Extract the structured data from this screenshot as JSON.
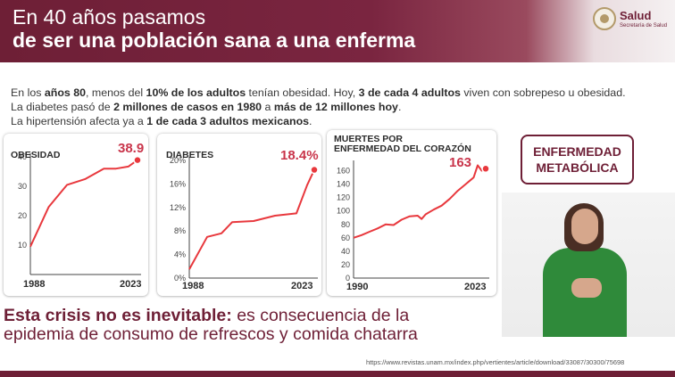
{
  "header": {
    "title_line1": "En 40 años pasamos",
    "title_line2": "de ser una población sana a una enferma",
    "logo_name": "Salud",
    "logo_subtitle": "Secretaría de Salud"
  },
  "intro": {
    "line1": {
      "p1": "En los ",
      "b1": "años 80",
      "p2": ", menos del ",
      "b2": "10% de los adultos",
      "p3": " tenían obesidad. Hoy, ",
      "b3": "3 de cada 4 adultos",
      "p4": " viven con sobrepeso u obesidad."
    },
    "line2": {
      "p1": "La diabetes pasó de ",
      "b1": "2 millones de casos en 1980",
      "p2": " a ",
      "b2": "más de 12 millones hoy",
      "p3": "."
    },
    "line3": {
      "p1": "La hipertensión afecta ya a ",
      "b1": "1 de cada 3 adultos mexicanos",
      "p2": "."
    }
  },
  "badge": {
    "line1": "ENFERMEDAD",
    "line2": "METABÓLICA"
  },
  "statement": {
    "bold": "Esta crisis no es inevitable:",
    "rest1": " es consecuencia de la",
    "line2": "epidemia de consumo de refrescos y comida chatarra"
  },
  "source": "https://www.revistas.unam.mx/index.php/vertientes/article/download/33087/30300/75698",
  "colors": {
    "accent": "#6e1f36",
    "line": "#e8383d",
    "value": "#c9354b"
  },
  "chart_data": [
    {
      "type": "line",
      "title": "OBESIDAD",
      "highlight": "38.9",
      "x_start_label": "1988",
      "x_end_label": "2023",
      "x": [
        1988,
        1994,
        2000,
        2006,
        2012,
        2016,
        2020,
        2023
      ],
      "values": [
        9.5,
        23,
        30.5,
        32.5,
        36,
        36,
        36.7,
        38.9
      ],
      "ylim": [
        0,
        40
      ],
      "yticks": [
        10,
        20,
        30,
        40
      ],
      "ytick_labels": [
        "10",
        "20",
        "30",
        "40"
      ]
    },
    {
      "type": "line",
      "title": "DIABETES",
      "highlight": "18.4%",
      "x_start_label": "1988",
      "x_end_label": "2023",
      "x": [
        1988,
        1993,
        1997,
        2000,
        2006,
        2012,
        2018,
        2021,
        2023
      ],
      "values": [
        1.5,
        7,
        7.6,
        9.5,
        9.7,
        10.6,
        11,
        15.8,
        18.4
      ],
      "ylim": [
        0,
        20
      ],
      "yticks": [
        0,
        4,
        8,
        12,
        16,
        20
      ],
      "ytick_labels": [
        "0%",
        "4%",
        "8%",
        "12%",
        "16%",
        "20%"
      ]
    },
    {
      "type": "line",
      "title_line1": "MUERTES POR",
      "title_line2": "ENFERMEDAD DEL CORAZÓN",
      "highlight": "163",
      "x_start_label": "1990",
      "x_end_label": "2023",
      "x": [
        1990,
        1992,
        1994,
        1996,
        1998,
        2000,
        2002,
        2004,
        2006,
        2007,
        2008,
        2010,
        2012,
        2014,
        2016,
        2018,
        2019,
        2020,
        2021,
        2022,
        2023
      ],
      "values": [
        60,
        64,
        69,
        74,
        80,
        79,
        87,
        92,
        93,
        88,
        95,
        102,
        108,
        118,
        130,
        140,
        145,
        150,
        168,
        160,
        163
      ],
      "ylim": [
        0,
        170
      ],
      "yticks": [
        0,
        20,
        40,
        60,
        80,
        100,
        120,
        140,
        160
      ],
      "ytick_labels": [
        "0",
        "20",
        "40",
        "60",
        "80",
        "100",
        "120",
        "140",
        "160"
      ]
    }
  ]
}
